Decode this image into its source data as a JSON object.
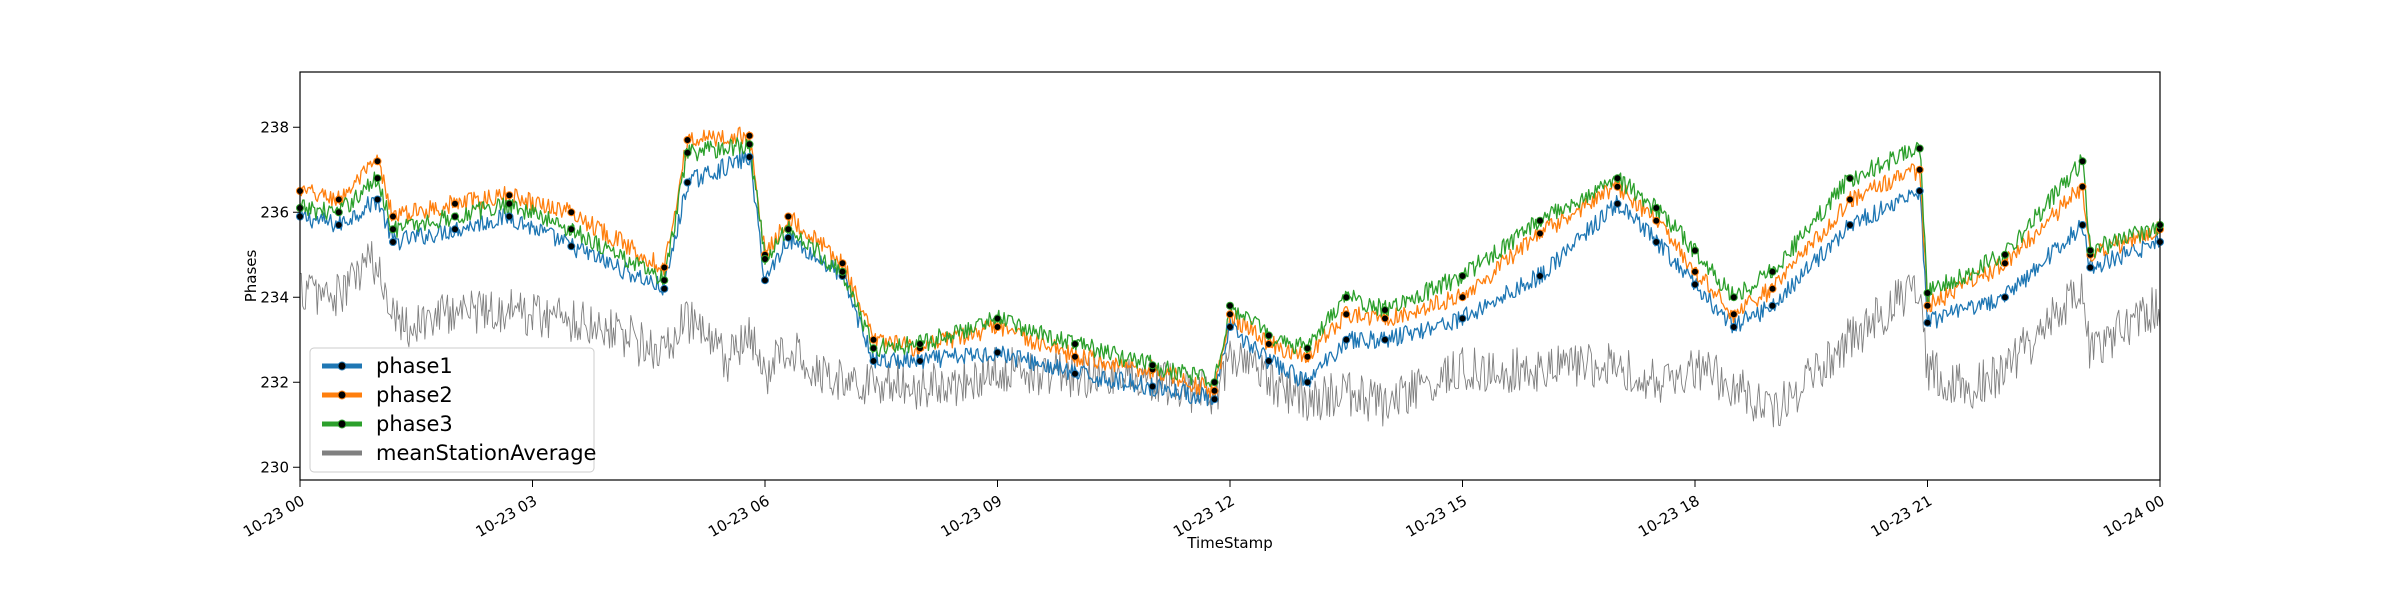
{
  "chart_data": {
    "type": "line",
    "xlabel": "TimeStamp",
    "ylabel": "Phases",
    "xlim": [
      "10-23 00",
      "10-24 00"
    ],
    "ylim": [
      229.7,
      239.3
    ],
    "x_ticks": [
      "10-23 00",
      "10-23 03",
      "10-23 06",
      "10-23 09",
      "10-23 12",
      "10-23 15",
      "10-23 18",
      "10-23 21",
      "10-24 00"
    ],
    "y_ticks": [
      230,
      232,
      234,
      236,
      238
    ],
    "legend_position": "lower-left",
    "grid": false,
    "series": [
      {
        "name": "phase1",
        "color": "#1f77b4",
        "marker": "dot",
        "hours": [
          0,
          0.5,
          1,
          1.2,
          2,
          2.7,
          3.5,
          4.7,
          5,
          5.8,
          6,
          6.3,
          7,
          7.4,
          8,
          9,
          10,
          11,
          11.8,
          12,
          12.5,
          13,
          13.5,
          14,
          15,
          16,
          17,
          17.5,
          18,
          18.5,
          19,
          20,
          20.9,
          21,
          22,
          23,
          23.1,
          24
        ],
        "values": [
          235.9,
          235.7,
          236.3,
          235.3,
          235.6,
          235.9,
          235.2,
          234.2,
          236.7,
          237.3,
          234.4,
          235.4,
          234.5,
          232.5,
          232.5,
          232.7,
          232.2,
          231.9,
          231.6,
          233.3,
          232.5,
          232.0,
          233.0,
          233.0,
          233.5,
          234.5,
          236.2,
          235.3,
          234.3,
          233.3,
          233.8,
          235.7,
          236.5,
          233.4,
          234.0,
          235.7,
          234.7,
          235.3
        ]
      },
      {
        "name": "phase2",
        "color": "#ff7f0e",
        "marker": "dot",
        "hours": [
          0,
          0.5,
          1,
          1.2,
          2,
          2.7,
          3.5,
          4.7,
          5,
          5.8,
          6,
          6.3,
          7,
          7.4,
          8,
          9,
          10,
          11,
          11.8,
          12,
          12.5,
          13,
          13.5,
          14,
          15,
          16,
          17,
          17.5,
          18,
          18.5,
          19,
          20,
          20.9,
          21,
          22,
          23,
          23.1,
          24
        ],
        "values": [
          236.5,
          236.3,
          237.2,
          235.9,
          236.2,
          236.4,
          236.0,
          234.7,
          237.7,
          237.8,
          235.0,
          235.9,
          234.8,
          233.0,
          232.8,
          233.3,
          232.6,
          232.3,
          231.8,
          233.6,
          232.9,
          232.6,
          233.6,
          233.5,
          234.0,
          235.5,
          236.6,
          235.8,
          234.6,
          233.6,
          234.2,
          236.3,
          237.0,
          233.8,
          234.8,
          236.6,
          235.0,
          235.6
        ]
      },
      {
        "name": "phase3",
        "color": "#2ca02c",
        "marker": "dot",
        "hours": [
          0,
          0.5,
          1,
          1.2,
          2,
          2.7,
          3.5,
          4.7,
          5,
          5.8,
          6,
          6.3,
          7,
          7.4,
          8,
          9,
          10,
          11,
          11.8,
          12,
          12.5,
          13,
          13.5,
          14,
          15,
          16,
          17,
          17.5,
          18,
          18.5,
          19,
          20,
          20.9,
          21,
          22,
          23,
          23.1,
          24
        ],
        "values": [
          236.1,
          236.0,
          236.8,
          235.6,
          235.9,
          236.2,
          235.6,
          234.4,
          237.4,
          237.6,
          234.9,
          235.6,
          234.6,
          232.8,
          232.9,
          233.5,
          232.9,
          232.4,
          232.0,
          233.8,
          233.1,
          232.8,
          234.0,
          233.7,
          234.5,
          235.8,
          236.8,
          236.1,
          235.1,
          234.0,
          234.6,
          236.8,
          237.5,
          234.1,
          235.0,
          237.2,
          235.1,
          235.7
        ]
      },
      {
        "name": "meanStationAverage",
        "color": "#808080",
        "marker": "none",
        "hours": [
          0,
          0.5,
          0.9,
          1.2,
          1.4,
          2,
          2.7,
          3.5,
          4.0,
          4.5,
          4.7,
          5,
          5.5,
          5.8,
          6,
          6.3,
          7,
          7.4,
          8,
          8.5,
          9,
          10,
          11,
          11.8,
          12,
          12.5,
          13,
          13.5,
          14,
          15,
          16,
          17,
          17.5,
          18,
          18.5,
          19,
          20,
          20.9,
          21,
          21.5,
          22,
          23,
          23.1,
          24
        ],
        "values": [
          234.2,
          234.0,
          234.9,
          233.8,
          233.3,
          233.7,
          233.7,
          233.5,
          233.3,
          232.8,
          232.7,
          233.5,
          232.5,
          233.0,
          232.2,
          232.8,
          232.0,
          232.0,
          231.9,
          232.0,
          232.3,
          232.2,
          232.0,
          231.7,
          232.6,
          232.0,
          231.6,
          231.7,
          231.5,
          232.3,
          232.3,
          232.4,
          232.0,
          232.4,
          231.9,
          231.3,
          233.0,
          234.3,
          232.3,
          231.8,
          232.3,
          234.2,
          232.7,
          233.8
        ]
      }
    ]
  }
}
